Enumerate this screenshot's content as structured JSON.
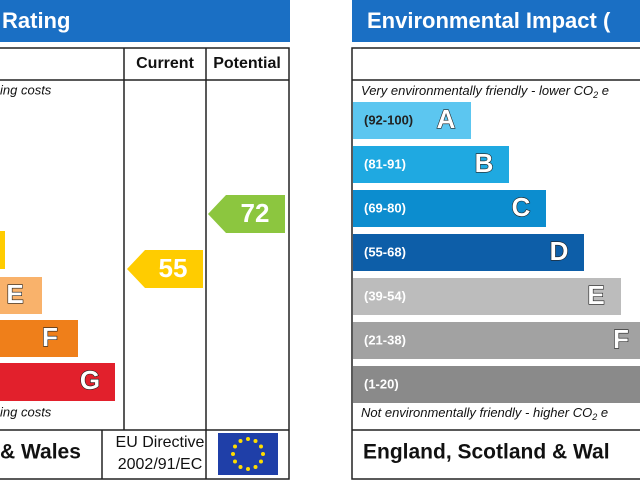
{
  "left": {
    "title": "Rating",
    "headers": [
      "Current",
      "Potential"
    ],
    "top_note": "ing costs",
    "bottom_note": "ing costs",
    "bands": [
      {
        "letter": "E"
      },
      {
        "letter": "F"
      },
      {
        "letter": "G"
      }
    ],
    "current": "55",
    "potential": "72",
    "footer": "& Wales",
    "directive": [
      "EU Directive",
      "2002/91/EC"
    ]
  },
  "right": {
    "title": "Environmental Impact (",
    "top_note": [
      "Very environmentally friendly - lower CO",
      "2",
      " e"
    ],
    "bottom_note": [
      "Not environmentally friendly - higher CO",
      "2",
      " e"
    ],
    "bands": [
      {
        "range": "(92-100)",
        "letter": "A"
      },
      {
        "range": "(81-91)",
        "letter": "B"
      },
      {
        "range": "(69-80)",
        "letter": "C"
      },
      {
        "range": "(55-68)",
        "letter": "D"
      },
      {
        "range": "(39-54)",
        "letter": "E"
      },
      {
        "range": "(21-38)",
        "letter": "F"
      },
      {
        "range": "(1-20)"
      }
    ],
    "footer": "England, Scotland & Wal"
  }
}
